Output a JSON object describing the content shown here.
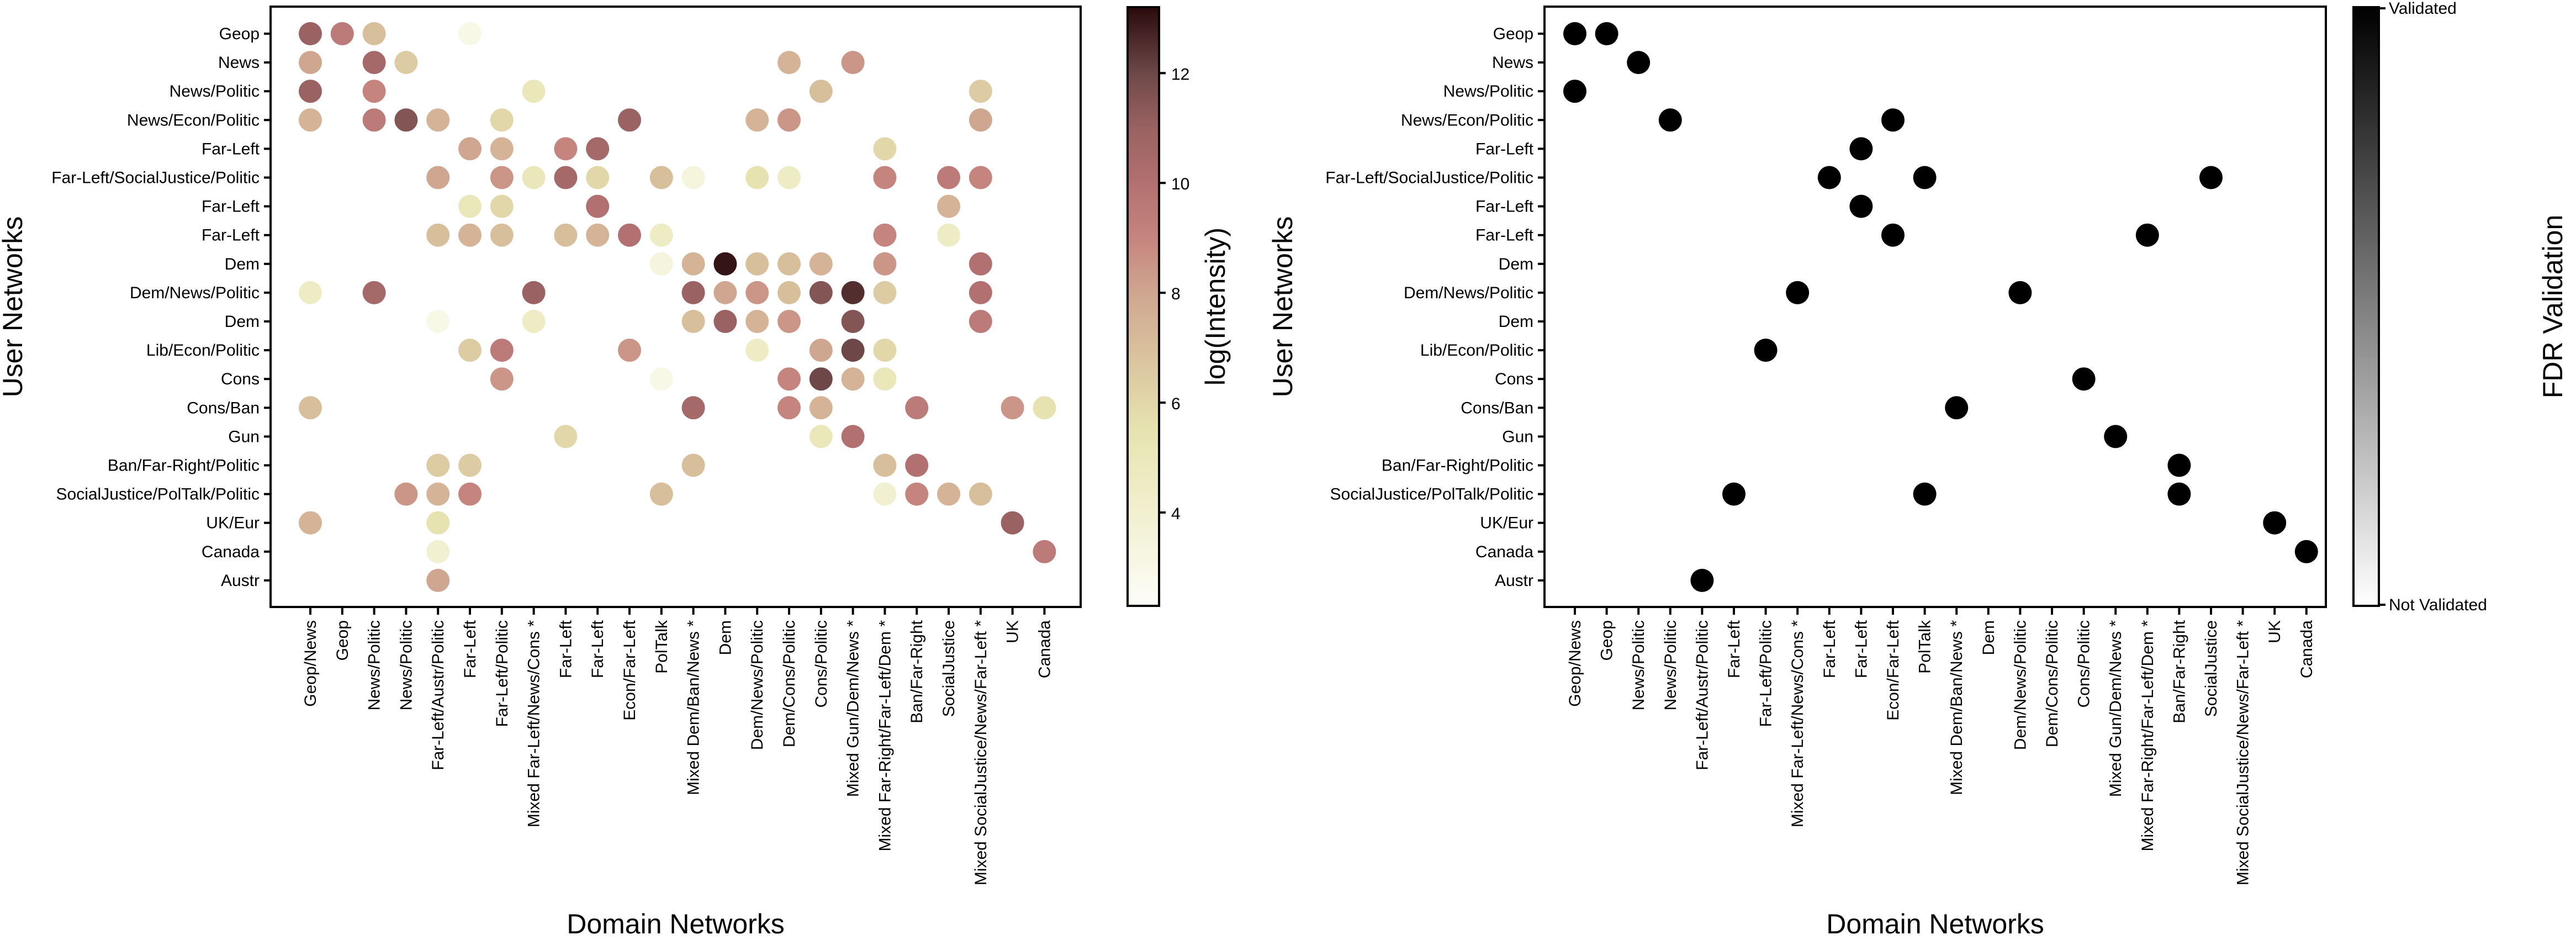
{
  "chart_data": [
    {
      "type": "scatter",
      "subtype": "bubble-matrix",
      "xlabel": "Domain Networks",
      "ylabel": "User Networks",
      "colorbar_label": "log(Intensity)",
      "colorbar_ticks": [
        4,
        6,
        8,
        10,
        12
      ],
      "color_range": [
        2.3,
        13.2
      ],
      "colormap_stops": [
        [
          "2.3",
          "#fdfdf8"
        ],
        [
          "4.5",
          "#eeecc4"
        ],
        [
          "5.5",
          "#e6e3b0"
        ],
        [
          "7",
          "#d8bf9c"
        ],
        [
          "8",
          "#cfa690"
        ],
        [
          "9",
          "#c6847f"
        ],
        [
          "10",
          "#b27070"
        ],
        [
          "11",
          "#9a6262"
        ],
        [
          "12",
          "#6e4848"
        ],
        [
          "13.2",
          "#2a0a0c"
        ]
      ],
      "x_categories": [
        "Geop/News",
        "Geop",
        "News/Politic",
        "News/Politic",
        "Far-Left/Austr/Politic",
        "Far-Left",
        "Far-Left/Politic",
        "Mixed Far-Left/News/Cons *",
        "Far-Left",
        "Far-Left",
        "Econ/Far-Left",
        "PolTalk",
        "Mixed Dem/Ban/News *",
        "Dem",
        "Dem/News/Politic",
        "Dem/Cons/Politic",
        "Cons/Politic",
        "Mixed Gun/Dem/News *",
        "Mixed Far-Right/Far-Left/Dem *",
        "Ban/Far-Right",
        "SocialJustice",
        "Mixed SocialJustice/News/Far-Left *",
        "UK",
        "Canada"
      ],
      "y_categories": [
        "Geop",
        "News",
        "News/Politic",
        "News/Econ/Politic",
        "Far-Left",
        "Far-Left/SocialJustice/Politic",
        "Far-Left",
        "Far-Left",
        "Dem",
        "Dem/News/Politic",
        "Dem",
        "Lib/Econ/Politic",
        "Cons",
        "Cons/Ban",
        "Gun",
        "Ban/Far-Right/Politic",
        "SocialJustice/PolTalk/Politic",
        "UK/Eur",
        "Canada",
        "Austr"
      ],
      "points_format": [
        "y_index",
        "x_index",
        "log_intensity"
      ],
      "points": [
        [
          0,
          0,
          11
        ],
        [
          0,
          1,
          9.5
        ],
        [
          0,
          2,
          7
        ],
        [
          0,
          5,
          3
        ],
        [
          1,
          0,
          8
        ],
        [
          1,
          2,
          10.5
        ],
        [
          1,
          3,
          6.5
        ],
        [
          1,
          15,
          7.5
        ],
        [
          1,
          17,
          8.5
        ],
        [
          2,
          0,
          11
        ],
        [
          2,
          2,
          9
        ],
        [
          2,
          7,
          5
        ],
        [
          2,
          16,
          7
        ],
        [
          2,
          21,
          6.5
        ],
        [
          3,
          0,
          7.5
        ],
        [
          3,
          2,
          9.5
        ],
        [
          3,
          3,
          11.5
        ],
        [
          3,
          4,
          7.5
        ],
        [
          3,
          6,
          6
        ],
        [
          3,
          10,
          11
        ],
        [
          3,
          14,
          7.5
        ],
        [
          3,
          15,
          8.5
        ],
        [
          3,
          21,
          8
        ],
        [
          4,
          5,
          8
        ],
        [
          4,
          6,
          7.5
        ],
        [
          4,
          8,
          9
        ],
        [
          4,
          9,
          10.5
        ],
        [
          4,
          18,
          6
        ],
        [
          5,
          4,
          8
        ],
        [
          5,
          6,
          8.5
        ],
        [
          5,
          7,
          5
        ],
        [
          5,
          8,
          10.5
        ],
        [
          5,
          9,
          6
        ],
        [
          5,
          11,
          7
        ],
        [
          5,
          12,
          3.5
        ],
        [
          5,
          14,
          5.5
        ],
        [
          5,
          15,
          4.5
        ],
        [
          5,
          18,
          9
        ],
        [
          5,
          20,
          9.5
        ],
        [
          5,
          21,
          9
        ],
        [
          6,
          5,
          5
        ],
        [
          6,
          6,
          6
        ],
        [
          6,
          9,
          10
        ],
        [
          6,
          20,
          7.5
        ],
        [
          7,
          4,
          7
        ],
        [
          7,
          5,
          7.5
        ],
        [
          7,
          6,
          7
        ],
        [
          7,
          8,
          7
        ],
        [
          7,
          9,
          7.5
        ],
        [
          7,
          10,
          10
        ],
        [
          7,
          11,
          4.5
        ],
        [
          7,
          18,
          9
        ],
        [
          7,
          20,
          4.5
        ],
        [
          8,
          11,
          3.5
        ],
        [
          8,
          12,
          7.5
        ],
        [
          8,
          13,
          13
        ],
        [
          8,
          14,
          7
        ],
        [
          8,
          15,
          7
        ],
        [
          8,
          16,
          7.5
        ],
        [
          8,
          18,
          8.5
        ],
        [
          8,
          21,
          10
        ],
        [
          9,
          0,
          4.5
        ],
        [
          9,
          2,
          10.5
        ],
        [
          9,
          7,
          11
        ],
        [
          9,
          12,
          11
        ],
        [
          9,
          13,
          8
        ],
        [
          9,
          14,
          8.5
        ],
        [
          9,
          15,
          7
        ],
        [
          9,
          16,
          11.5
        ],
        [
          9,
          17,
          12.5
        ],
        [
          9,
          18,
          6.5
        ],
        [
          9,
          21,
          10
        ],
        [
          10,
          4,
          3
        ],
        [
          10,
          7,
          4.5
        ],
        [
          10,
          12,
          7
        ],
        [
          10,
          13,
          11
        ],
        [
          10,
          14,
          7.5
        ],
        [
          10,
          15,
          8.5
        ],
        [
          10,
          17,
          11.5
        ],
        [
          10,
          21,
          9.5
        ],
        [
          11,
          5,
          6.5
        ],
        [
          11,
          6,
          9.5
        ],
        [
          11,
          10,
          8.5
        ],
        [
          11,
          14,
          4.5
        ],
        [
          11,
          16,
          8
        ],
        [
          11,
          17,
          12
        ],
        [
          11,
          18,
          6
        ],
        [
          12,
          6,
          8.5
        ],
        [
          12,
          11,
          3
        ],
        [
          12,
          15,
          9
        ],
        [
          12,
          16,
          12
        ],
        [
          12,
          17,
          7.5
        ],
        [
          12,
          18,
          5
        ],
        [
          13,
          0,
          7
        ],
        [
          13,
          12,
          10.5
        ],
        [
          13,
          15,
          9
        ],
        [
          13,
          16,
          7.5
        ],
        [
          13,
          19,
          9.5
        ],
        [
          13,
          22,
          8.5
        ],
        [
          13,
          23,
          5.5
        ],
        [
          14,
          8,
          6
        ],
        [
          14,
          16,
          5
        ],
        [
          14,
          17,
          10
        ],
        [
          15,
          4,
          6.5
        ],
        [
          15,
          5,
          6.5
        ],
        [
          15,
          12,
          7
        ],
        [
          15,
          18,
          7
        ],
        [
          15,
          19,
          10
        ],
        [
          16,
          3,
          8.5
        ],
        [
          16,
          4,
          7.5
        ],
        [
          16,
          5,
          9
        ],
        [
          16,
          11,
          7
        ],
        [
          16,
          18,
          4
        ],
        [
          16,
          19,
          9
        ],
        [
          16,
          20,
          7.5
        ],
        [
          16,
          21,
          7
        ],
        [
          17,
          0,
          7.5
        ],
        [
          17,
          4,
          5.5
        ],
        [
          17,
          22,
          11
        ],
        [
          18,
          4,
          4
        ],
        [
          18,
          23,
          9.5
        ],
        [
          19,
          4,
          8
        ]
      ]
    },
    {
      "type": "scatter",
      "subtype": "bubble-matrix",
      "xlabel": "Domain Networks",
      "ylabel": "User Networks",
      "colorbar_label": "FDR Validation",
      "colorbar_top_label": "Validated",
      "colorbar_bottom_label": "Not Validated",
      "marker_color": "#000000",
      "points_format": [
        "y_index",
        "x_index"
      ],
      "validated_points": [
        [
          0,
          0
        ],
        [
          0,
          1
        ],
        [
          1,
          2
        ],
        [
          2,
          0
        ],
        [
          3,
          3
        ],
        [
          3,
          10
        ],
        [
          4,
          9
        ],
        [
          5,
          8
        ],
        [
          5,
          11
        ],
        [
          5,
          20
        ],
        [
          6,
          9
        ],
        [
          7,
          10
        ],
        [
          7,
          18
        ],
        [
          9,
          7
        ],
        [
          9,
          14
        ],
        [
          11,
          6
        ],
        [
          12,
          16
        ],
        [
          13,
          12
        ],
        [
          14,
          17
        ],
        [
          15,
          19
        ],
        [
          16,
          5
        ],
        [
          16,
          11
        ],
        [
          16,
          19
        ],
        [
          17,
          22
        ],
        [
          18,
          23
        ],
        [
          19,
          4
        ]
      ]
    }
  ]
}
